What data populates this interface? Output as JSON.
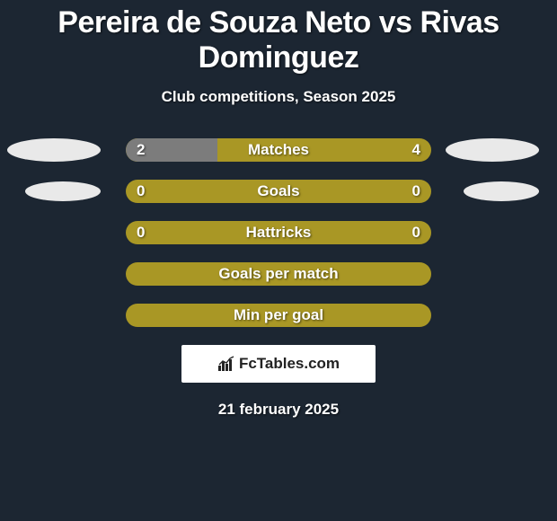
{
  "title": "Pereira de Souza Neto vs Rivas Dominguez",
  "subtitle": "Club competitions, Season 2025",
  "date": "21 february 2025",
  "logo_text": "FcTables.com",
  "colors": {
    "background": "#1c2632",
    "player_left": "#e9e9e9",
    "player_right": "#e9e9e9",
    "bar_base": "#a99725",
    "bar_left_fill": "#7c7c7c",
    "bar_right_fill": "#b3b3b3",
    "text": "#ffffff",
    "logo_bg": "#ffffff",
    "logo_text": "#232323"
  },
  "rows": [
    {
      "label": "Matches",
      "left_val": "2",
      "right_val": "4",
      "left_pct": 30,
      "right_pct": 0,
      "show_left_ellipse": true,
      "show_right_ellipse": true,
      "show_vals": true,
      "left_fill_color": "#7c7c7c",
      "right_fill_color": null
    },
    {
      "label": "Goals",
      "left_val": "0",
      "right_val": "0",
      "left_pct": 0,
      "right_pct": 0,
      "show_left_ellipse": true,
      "show_right_ellipse": true,
      "show_vals": true,
      "left_fill_color": null,
      "right_fill_color": null
    },
    {
      "label": "Hattricks",
      "left_val": "0",
      "right_val": "0",
      "left_pct": 0,
      "right_pct": 0,
      "show_left_ellipse": false,
      "show_right_ellipse": false,
      "show_vals": true,
      "left_fill_color": null,
      "right_fill_color": null
    },
    {
      "label": "Goals per match",
      "left_val": "",
      "right_val": "",
      "left_pct": 0,
      "right_pct": 0,
      "show_left_ellipse": false,
      "show_right_ellipse": false,
      "show_vals": false,
      "left_fill_color": null,
      "right_fill_color": null
    },
    {
      "label": "Min per goal",
      "left_val": "",
      "right_val": "",
      "left_pct": 0,
      "right_pct": 0,
      "show_left_ellipse": false,
      "show_right_ellipse": false,
      "show_vals": false,
      "left_fill_color": null,
      "right_fill_color": null
    }
  ]
}
